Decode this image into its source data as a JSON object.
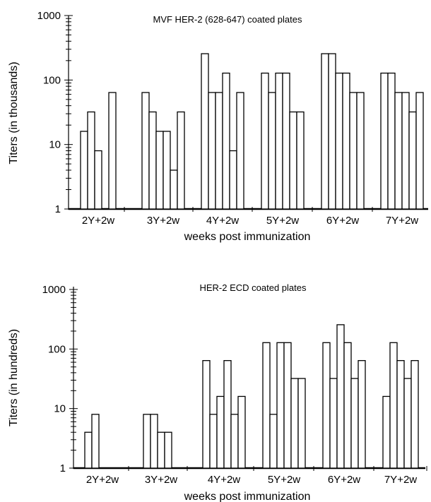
{
  "chart_data": [
    {
      "type": "bar",
      "title": "MVF HER-2 (628-647) coated plates",
      "xlabel": "weeks post immunization",
      "ylabel": "Titers (in thousands)",
      "yscale": "log",
      "ylim": [
        1,
        1000
      ],
      "yticks": [
        "1",
        "10",
        "100",
        "1000"
      ],
      "grid": false,
      "categories": [
        "2Y+2w",
        "3Y+2w",
        "4Y+2w",
        "5Y+2w",
        "6Y+2w",
        "7Y+2w"
      ],
      "groups": [
        [
          16,
          32,
          8,
          1,
          64
        ],
        [
          64,
          32,
          16,
          16,
          4,
          32
        ],
        [
          256,
          64,
          64,
          128,
          8,
          64
        ],
        [
          128,
          64,
          128,
          128,
          32,
          32
        ],
        [
          256,
          256,
          128,
          128,
          64,
          64
        ],
        [
          128,
          128,
          64,
          64,
          32,
          64
        ]
      ]
    },
    {
      "type": "bar",
      "title": "HER-2 ECD coated plates",
      "xlabel": "weeks post immunization",
      "ylabel": "Titers (in hundreds)",
      "yscale": "log",
      "ylim": [
        1,
        1000
      ],
      "yticks": [
        "1",
        "10",
        "100",
        "1000"
      ],
      "grid": false,
      "categories": [
        "2Y+2w",
        "3Y+2w",
        "4Y+2w",
        "5Y+2w",
        "6Y+2w",
        "7Y+2w"
      ],
      "groups": [
        [
          4,
          8
        ],
        [
          8,
          8,
          4,
          4
        ],
        [
          64,
          8,
          16,
          64,
          8,
          16
        ],
        [
          128,
          8,
          128,
          128,
          32,
          32
        ],
        [
          128,
          32,
          256,
          128,
          32,
          64
        ],
        [
          16,
          128,
          64,
          32,
          64
        ]
      ]
    }
  ]
}
